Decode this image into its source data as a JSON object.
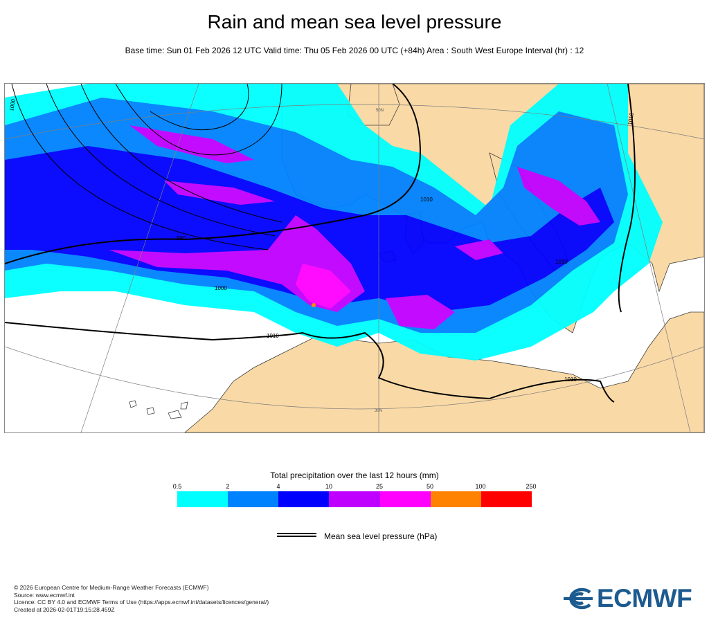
{
  "header": {
    "title": "Rain and mean sea level pressure",
    "subtitle": "Base time: Sun 01 Feb 2026 12 UTC Valid time: Thu 05 Feb 2026 00 UTC (+84h) Area : South West Europe Interval (hr) : 12"
  },
  "map": {
    "area": "South West Europe",
    "isobar_labels": [
      "1000",
      "990",
      "1000",
      "1010",
      "1010",
      "1010",
      "1010",
      "1010"
    ],
    "graticule_labels": [
      "50N",
      "30N"
    ],
    "colors": {
      "land": "#f9d9a6",
      "sea": "#ffffff",
      "isobar": "#000000",
      "graticule": "#7d7d7d",
      "border": "#3c3c3c"
    }
  },
  "legend": {
    "title": "Total precipitation over the last 12 hours (mm)",
    "ticks": [
      "0.5",
      "2",
      "4",
      "10",
      "25",
      "50",
      "100",
      "250"
    ],
    "bins": [
      {
        "from": 0.5,
        "to": 2,
        "color": "#00ffff"
      },
      {
        "from": 2,
        "to": 4,
        "color": "#0082ff"
      },
      {
        "from": 4,
        "to": 10,
        "color": "#0000ff"
      },
      {
        "from": 10,
        "to": 25,
        "color": "#c000ff"
      },
      {
        "from": 25,
        "to": 50,
        "color": "#ff00ff"
      },
      {
        "from": 50,
        "to": 100,
        "color": "#ff8200"
      },
      {
        "from": 100,
        "to": 250,
        "color": "#ff0000"
      }
    ],
    "pressure_label": "Mean sea level pressure (hPa)"
  },
  "credits": {
    "copyright": "© 2026 European Centre for Medium-Range Weather Forecasts (ECMWF)",
    "source": "Source: www.ecmwf.int",
    "licence": "Licence: CC BY 4.0 and ECMWF Terms of Use (https://apps.ecmwf.int/datasets/licences/general/)",
    "created": "Created at 2026-02-01T19:15:28.459Z"
  },
  "logo": {
    "text": "ECMWF",
    "color": "#1c5a8f"
  }
}
